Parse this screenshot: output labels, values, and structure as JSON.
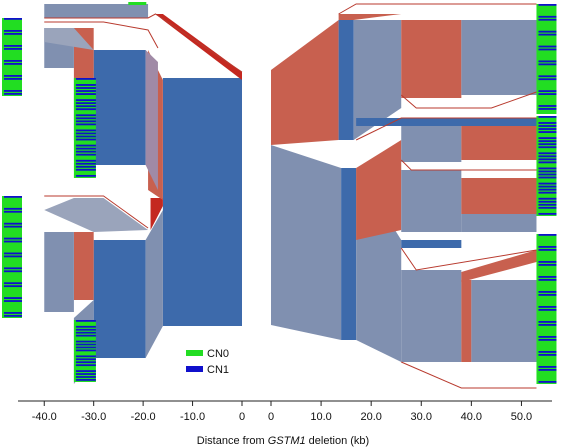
{
  "chart_data": {
    "type": "other",
    "xlabel_pre": "Distance from ",
    "xlabel_gene": "GSTM1",
    "xlabel_post": " deletion (kb)",
    "left_ticks": [
      -40.0,
      -30.0,
      -20.0,
      -10.0,
      0
    ],
    "right_ticks": [
      0,
      10.0,
      20.0,
      30.0,
      40.0,
      50.0
    ],
    "left_range": [
      -44.5,
      0
    ],
    "right_range": [
      0,
      55.5
    ],
    "legend": [
      {
        "label": "CN0",
        "color": "#22dd22"
      },
      {
        "label": "CN1",
        "color": "#1010cc"
      }
    ],
    "colors": {
      "trunk": "#3d6aab",
      "mixed": "#8090b0",
      "red": "#c8604f",
      "dark_red": "#c42820",
      "line": "#b83a2e"
    }
  }
}
